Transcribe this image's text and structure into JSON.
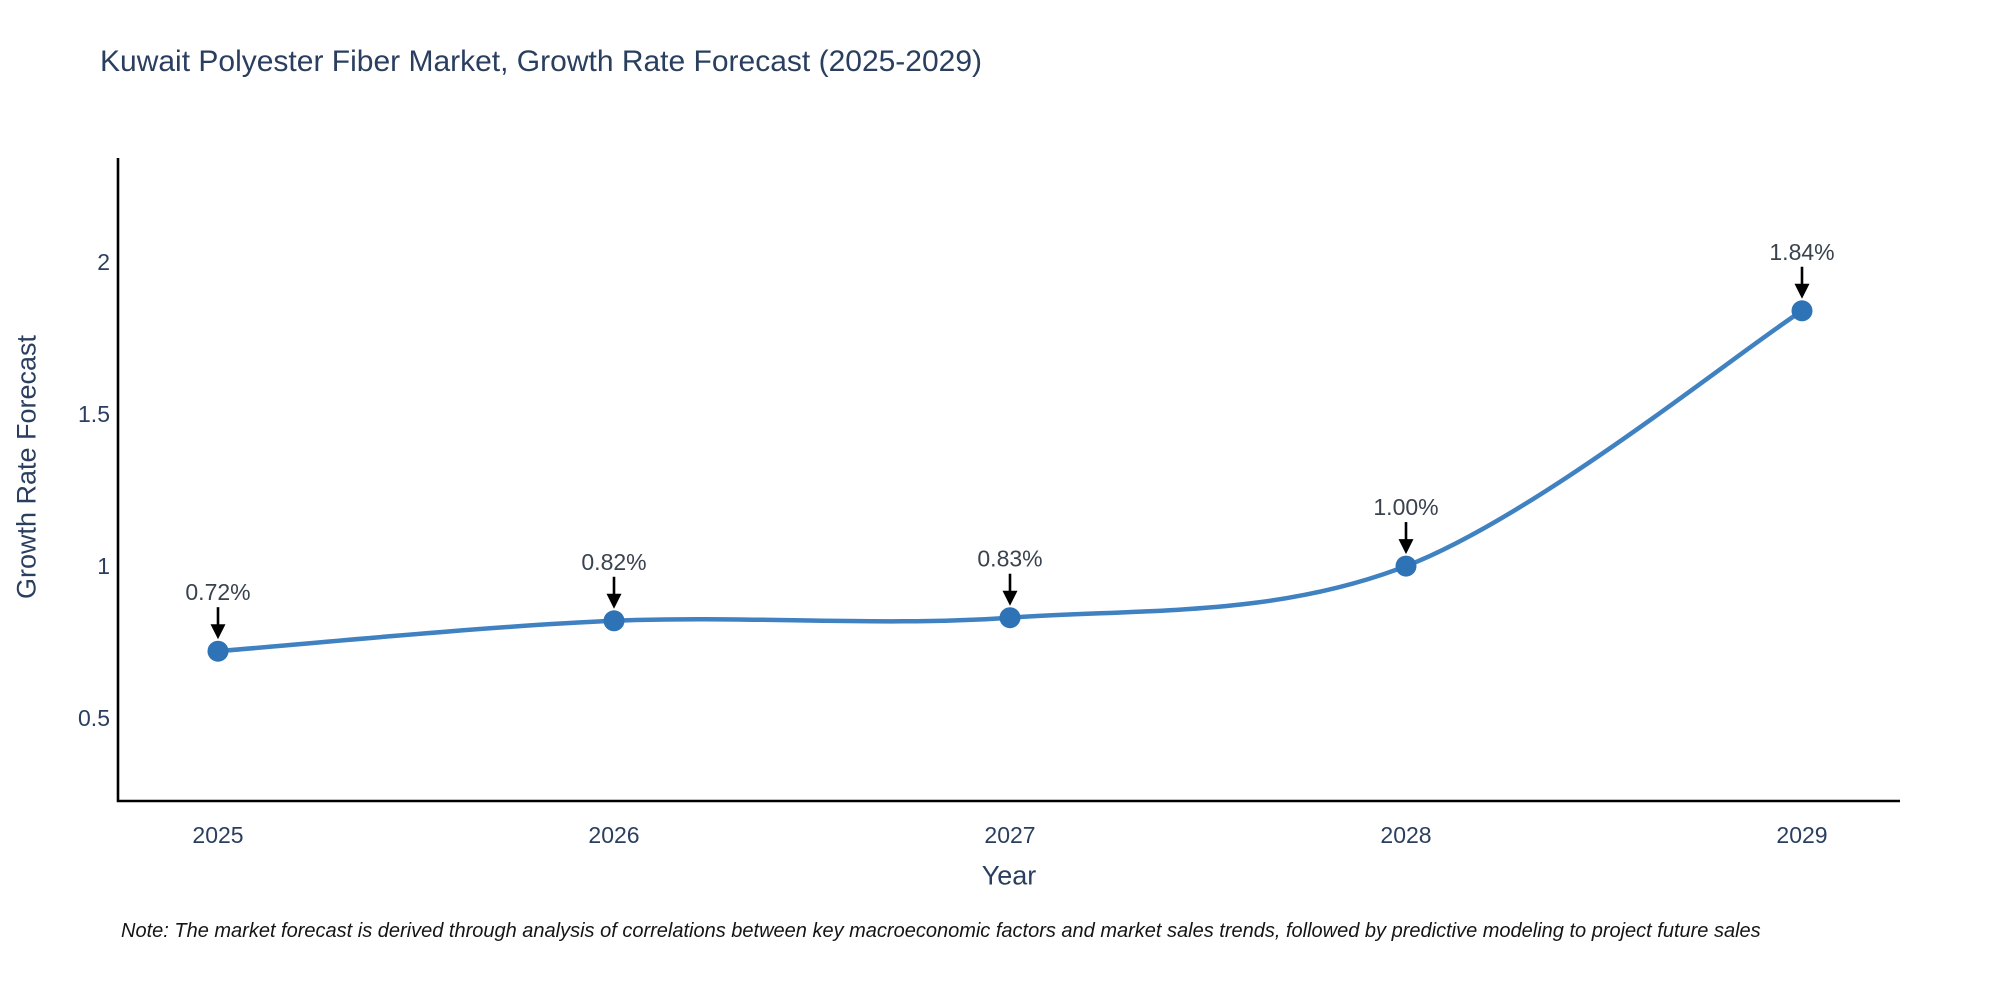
{
  "chart": {
    "note": "Note: The market forecast is derived through analysis of correlations between key macroeconomic factors and market sales trends, followed by predictive modeling to project future sales"
  },
  "chart_data": {
    "type": "line",
    "title": "Kuwait Polyester Fiber Market, Growth Rate Forecast (2025-2029)",
    "xlabel": "Year",
    "ylabel": "Growth Rate Forecast",
    "categories": [
      "2025",
      "2026",
      "2027",
      "2028",
      "2029"
    ],
    "series": [
      {
        "name": "Growth Rate Forecast",
        "values": [
          0.72,
          0.82,
          0.83,
          1.0,
          1.84
        ],
        "point_labels": [
          "0.72%",
          "0.82%",
          "0.83%",
          "1.00%",
          "1.84%"
        ]
      }
    ],
    "ytick_values": [
      0.5,
      1,
      1.5,
      2
    ],
    "ytick_labels": [
      "0.5",
      "1",
      "1.5",
      "2"
    ],
    "ylim": [
      0.227,
      2.336
    ],
    "grid": false,
    "legend": false,
    "line_shape": "spline",
    "colors": {
      "line": "#3f81c1",
      "marker": "#2e73b5",
      "axis": "#000000",
      "text": "#2a3f5f",
      "annotation_text": "#39434e",
      "arrow": "#000000"
    }
  }
}
